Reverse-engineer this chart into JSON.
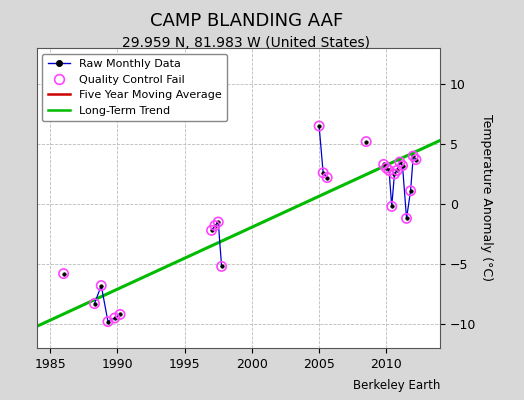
{
  "title": "CAMP BLANDING AAF",
  "subtitle": "29.959 N, 81.983 W (United States)",
  "ylabel": "Temperature Anomaly (°C)",
  "credit": "Berkeley Earth",
  "xlim": [
    1984,
    2014
  ],
  "ylim": [
    -12,
    13
  ],
  "yticks": [
    -10,
    -5,
    0,
    5,
    10
  ],
  "xticks": [
    1985,
    1990,
    1995,
    2000,
    2005,
    2010
  ],
  "background_color": "#d8d8d8",
  "plot_bg": "#ffffff",
  "line_segments": [
    {
      "x": [
        1986.0
      ],
      "y": [
        -5.8
      ]
    },
    {
      "x": [
        1988.3,
        1988.8,
        1989.3,
        1989.8,
        1990.2
      ],
      "y": [
        -8.3,
        -6.8,
        -9.8,
        -9.5,
        -9.2
      ]
    },
    {
      "x": [
        1997.0,
        1997.25,
        1997.5,
        1997.75
      ],
      "y": [
        -2.2,
        -1.8,
        -1.5,
        -5.2
      ]
    },
    {
      "x": [
        2005.0,
        2005.3,
        2005.6
      ],
      "y": [
        6.5,
        2.6,
        2.2
      ]
    },
    {
      "x": [
        2008.5
      ],
      "y": [
        5.2
      ]
    },
    {
      "x": [
        2009.8,
        2010.0,
        2010.2,
        2010.4,
        2010.6,
        2010.8,
        2011.0,
        2011.2,
        2011.5,
        2011.8,
        2012.0,
        2012.2
      ],
      "y": [
        3.3,
        3.0,
        2.8,
        -0.2,
        2.5,
        2.8,
        3.5,
        3.2,
        -1.2,
        1.1,
        4.0,
        3.7
      ]
    }
  ],
  "qc_fail_x": [
    1986.0,
    1988.3,
    1988.8,
    1989.3,
    1989.8,
    1990.2,
    1997.0,
    1997.25,
    1997.5,
    1997.75,
    2005.0,
    2005.3,
    2005.6,
    2008.5,
    2009.8,
    2010.0,
    2010.2,
    2010.4,
    2010.6,
    2010.8,
    2011.0,
    2011.2,
    2011.5,
    2011.8,
    2012.0,
    2012.2
  ],
  "qc_fail_y": [
    -5.8,
    -8.3,
    -6.8,
    -9.8,
    -9.5,
    -9.2,
    -2.2,
    -1.8,
    -1.5,
    -5.2,
    6.5,
    2.6,
    2.2,
    5.2,
    3.3,
    3.0,
    2.8,
    -0.2,
    2.5,
    2.8,
    3.5,
    3.2,
    -1.2,
    1.1,
    4.0,
    3.7
  ],
  "trend_line": {
    "x": [
      1984,
      2014
    ],
    "y": [
      -10.2,
      5.3
    ]
  },
  "colors": {
    "raw_line": "#0000cc",
    "raw_dot": "#000000",
    "qc_fail": "#ff44ff",
    "moving_avg": "#cc0000",
    "trend": "#00bb00",
    "grid": "#bbbbbb"
  },
  "title_fontsize": 13,
  "subtitle_fontsize": 10,
  "label_fontsize": 9,
  "tick_fontsize": 9,
  "legend_fontsize": 8
}
